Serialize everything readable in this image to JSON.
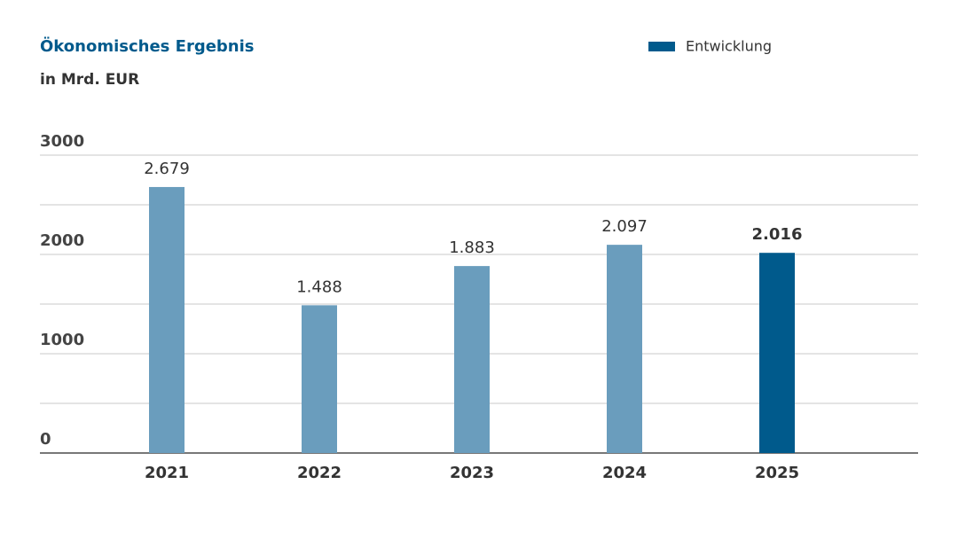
{
  "chart_data": {
    "type": "bar",
    "title": "Ökonomisches Ergebnis",
    "subtitle": "in Mrd. EUR",
    "categories": [
      "2021",
      "2022",
      "2023",
      "2024",
      "2025"
    ],
    "series": [
      {
        "name": "Entwicklung",
        "color": "#005a8c",
        "values": [
          2679,
          1488,
          1883,
          2097,
          2016
        ],
        "value_labels": [
          "2.679",
          "1.488",
          "1.883",
          "2.097",
          "2.016"
        ],
        "bar_colors": [
          "#6a9dbd",
          "#6a9dbd",
          "#6a9dbd",
          "#6a9dbd",
          "#005a8c"
        ]
      }
    ],
    "ylim": [
      0,
      3000
    ],
    "yticks": [
      0,
      1000,
      2000,
      3000
    ],
    "minor_gridlines": [
      500,
      1500,
      2500
    ],
    "grid": true,
    "legend": "top-right"
  }
}
